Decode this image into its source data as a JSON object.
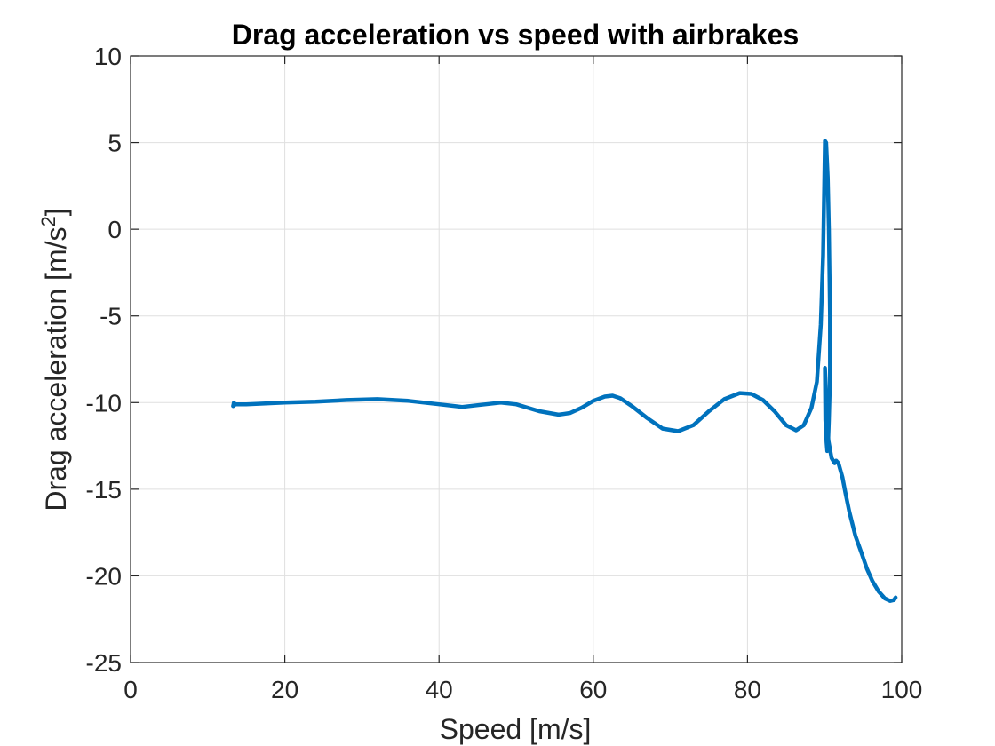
{
  "chart_data": {
    "type": "line",
    "title": "Drag acceleration vs speed with airbrakes",
    "xlabel": "Speed [m/s]",
    "ylabel": "Drag acceleration [m/s",
    "ylabel_superscript": "2",
    "ylabel_close": "]",
    "xlim": [
      0,
      100
    ],
    "ylim": [
      -25,
      10
    ],
    "xticks": [
      0,
      20,
      40,
      60,
      80,
      100
    ],
    "yticks": [
      -25,
      -20,
      -15,
      -10,
      -5,
      0,
      5,
      10
    ],
    "grid": true,
    "legend": "none",
    "series": [
      {
        "color": "#0072BD",
        "x": [
          13.4,
          13.3,
          13.6,
          15,
          20,
          24,
          28,
          32,
          36,
          40,
          43,
          45,
          48,
          50,
          53,
          55.5,
          57,
          58.5,
          60,
          61.5,
          62.5,
          63.5,
          65,
          67,
          69,
          71,
          73,
          75,
          77,
          79,
          80.5,
          82,
          83.5,
          85,
          86.3,
          87.3,
          88.3,
          89.0,
          89.5,
          89.8,
          89.95,
          90.05,
          90.2,
          90.4,
          90.55,
          90.65,
          90.7,
          90.7,
          90.65,
          90.55,
          90.45,
          90.35,
          90.25,
          90.1,
          90.05,
          90.2,
          90.5,
          90.9,
          91.3,
          91.5,
          91.8,
          92.3,
          92.7,
          93.2,
          94.0,
          94.8,
          95.5,
          96.2,
          97.0,
          97.8,
          98.5,
          99.0,
          99.2
        ],
        "y": [
          -10.0,
          -10.2,
          -10.1,
          -10.1,
          -10.0,
          -9.95,
          -9.85,
          -9.8,
          -9.9,
          -10.1,
          -10.25,
          -10.15,
          -10.0,
          -10.1,
          -10.5,
          -10.7,
          -10.6,
          -10.3,
          -9.9,
          -9.65,
          -9.6,
          -9.75,
          -10.2,
          -10.9,
          -11.5,
          -11.65,
          -11.3,
          -10.5,
          -9.8,
          -9.45,
          -9.5,
          -9.85,
          -10.5,
          -11.3,
          -11.6,
          -11.3,
          -10.3,
          -8.8,
          -5.5,
          -1.5,
          2.5,
          5.1,
          5.0,
          3.0,
          0.0,
          -3.0,
          -5.0,
          -8.0,
          -9.5,
          -11.0,
          -12.3,
          -12.8,
          -12.3,
          -11.0,
          -8.0,
          -10.0,
          -12.2,
          -13.2,
          -13.5,
          -13.35,
          -13.5,
          -14.3,
          -15.2,
          -16.3,
          -17.7,
          -18.7,
          -19.6,
          -20.3,
          -20.9,
          -21.3,
          -21.45,
          -21.4,
          -21.25
        ]
      }
    ]
  }
}
